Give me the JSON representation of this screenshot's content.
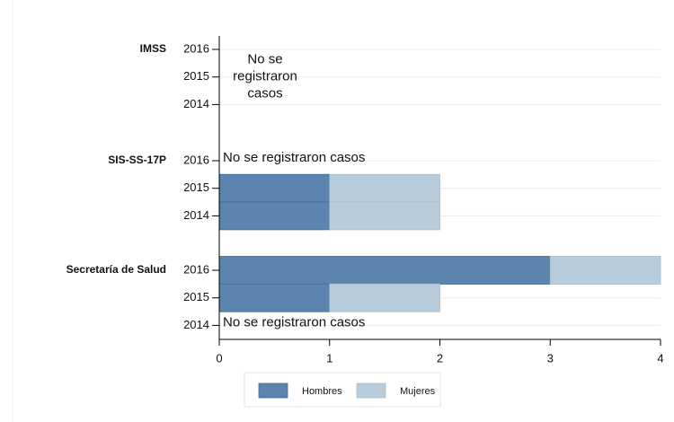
{
  "chart_data": {
    "type": "bar",
    "orientation": "horizontal",
    "stacked": true,
    "groups": [
      {
        "label": "IMSS",
        "categories": [
          "2016",
          "2015",
          "2014"
        ],
        "note": {
          "category": "2015",
          "lines": [
            "No se",
            "registraron",
            "casos"
          ]
        }
      },
      {
        "label": "SIS-SS-17P",
        "categories": [
          "2016",
          "2015",
          "2014"
        ],
        "note": {
          "category": "2016",
          "text": "No se registraron casos"
        }
      },
      {
        "label": "Secretaría de Salud",
        "categories": [
          "2016",
          "2015",
          "2014"
        ],
        "note": {
          "category": "2014",
          "text": "No se registraron casos"
        }
      }
    ],
    "series": [
      {
        "name": "Hombres",
        "color": "#5b84ae",
        "values": [
          null,
          null,
          null,
          null,
          1,
          1,
          3,
          1,
          null
        ]
      },
      {
        "name": "Mujeres",
        "color": "#b9ccdb",
        "values": [
          null,
          null,
          null,
          null,
          1,
          1,
          1,
          1,
          null
        ]
      }
    ],
    "xlim": [
      0,
      4
    ],
    "xticks": [
      0,
      1,
      2,
      3,
      4
    ],
    "grid": true,
    "legend": "bottom"
  }
}
